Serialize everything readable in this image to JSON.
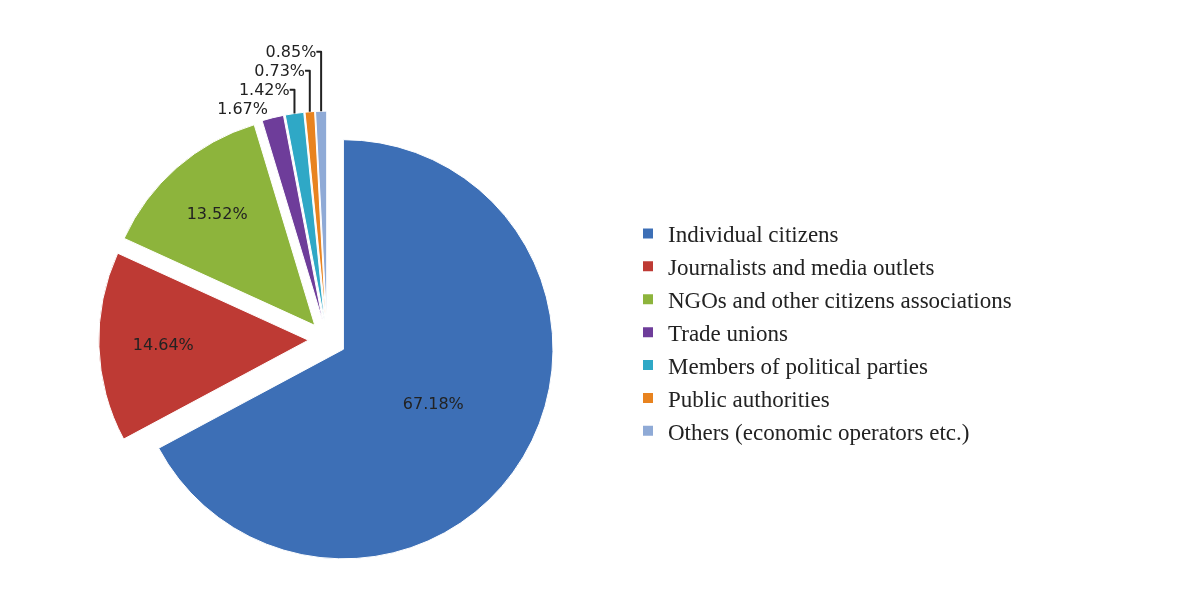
{
  "chart_data": {
    "type": "pie",
    "categories": [
      "Individual citizens",
      "Journalists and media outlets",
      "NGOs and other citizens associations",
      "Trade unions",
      "Members of political parties",
      "Public authorities",
      "Others (economic operators etc.)"
    ],
    "values": [
      67.18,
      14.64,
      13.52,
      1.67,
      1.42,
      0.73,
      0.85
    ],
    "colors": [
      "#3d6fb6",
      "#be3a34",
      "#8db43c",
      "#6e3d9a",
      "#2fa8c6",
      "#e8831f",
      "#8faad6"
    ],
    "value_labels": [
      "67.18%",
      "14.64%",
      "13.52%",
      "1.67%",
      "1.42%",
      "0.73%",
      "0.85%"
    ],
    "legend": "right"
  }
}
